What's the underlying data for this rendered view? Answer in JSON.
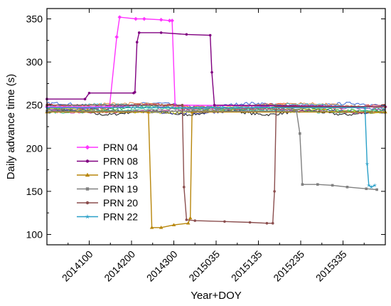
{
  "chart_data": {
    "type": "line",
    "xlabel": "Year+DOY",
    "ylabel": "Daily advance time (s)",
    "ylim": [
      88,
      362
    ],
    "xlim": [
      0,
      800
    ],
    "y_ticks": [
      100,
      150,
      200,
      250,
      300,
      350
    ],
    "x_ticks": [
      {
        "pos": 100,
        "label": "2014100"
      },
      {
        "pos": 200,
        "label": "2014200"
      },
      {
        "pos": 300,
        "label": "2014300"
      },
      {
        "pos": 400,
        "label": "2015035"
      },
      {
        "pos": 500,
        "label": "2015135"
      },
      {
        "pos": 600,
        "label": "2015235"
      },
      {
        "pos": 700,
        "label": "2015335"
      }
    ],
    "legend_position": "lower-left",
    "background_band": {
      "y_center": 246,
      "y_spread": 6,
      "colors": [
        "#000000",
        "#2a5cd0",
        "#e03030",
        "#20a020",
        "#a030c0",
        "#e08030",
        "#40b0c0",
        "#3030a0",
        "#c0c000",
        "#707070",
        "#d040a0",
        "#30c080"
      ]
    },
    "series": [
      {
        "name": "PRN 04",
        "color": "#ff33ff",
        "marker": "diamond",
        "points": [
          [
            0,
            248
          ],
          [
            148,
            248
          ],
          [
            165,
            329
          ],
          [
            172,
            352
          ],
          [
            210,
            350
          ],
          [
            230,
            350
          ],
          [
            270,
            349
          ],
          [
            290,
            348
          ],
          [
            296,
            348
          ],
          [
            303,
            250
          ],
          [
            800,
            248
          ]
        ]
      },
      {
        "name": "PRN 08",
        "color": "#800080",
        "marker": "circle",
        "points": [
          [
            0,
            257
          ],
          [
            90,
            257
          ],
          [
            100,
            264
          ],
          [
            205,
            264
          ],
          [
            208,
            265
          ],
          [
            213,
            323
          ],
          [
            218,
            334
          ],
          [
            270,
            334
          ],
          [
            330,
            332
          ],
          [
            386,
            331
          ],
          [
            390,
            288
          ],
          [
            396,
            250
          ],
          [
            800,
            248
          ]
        ]
      },
      {
        "name": "PRN 13",
        "color": "#b8860b",
        "marker": "triangle",
        "points": [
          [
            0,
            242
          ],
          [
            240,
            242
          ],
          [
            248,
            108
          ],
          [
            270,
            108
          ],
          [
            300,
            111
          ],
          [
            334,
            113
          ],
          [
            339,
            119
          ],
          [
            343,
            242
          ],
          [
            800,
            242
          ]
        ]
      },
      {
        "name": "PRN 19",
        "color": "#808080",
        "marker": "square",
        "points": [
          [
            0,
            243
          ],
          [
            590,
            243
          ],
          [
            598,
            217
          ],
          [
            604,
            158
          ],
          [
            640,
            158
          ],
          [
            675,
            157
          ],
          [
            710,
            155
          ],
          [
            755,
            153
          ],
          [
            780,
            152
          ]
        ]
      },
      {
        "name": "PRN 20",
        "color": "#8b4e4e",
        "marker": "circle",
        "points": [
          [
            0,
            250
          ],
          [
            320,
            250
          ],
          [
            324,
            155
          ],
          [
            330,
            117
          ],
          [
            350,
            116
          ],
          [
            420,
            115
          ],
          [
            480,
            114
          ],
          [
            520,
            113
          ],
          [
            534,
            113
          ],
          [
            538,
            150
          ],
          [
            542,
            248
          ],
          [
            800,
            248
          ]
        ]
      },
      {
        "name": "PRN 22",
        "color": "#2aa0c8",
        "marker": "star",
        "points": [
          [
            0,
            247
          ],
          [
            752,
            247
          ],
          [
            757,
            182
          ],
          [
            761,
            157
          ],
          [
            767,
            155
          ],
          [
            775,
            157
          ]
        ]
      }
    ]
  }
}
